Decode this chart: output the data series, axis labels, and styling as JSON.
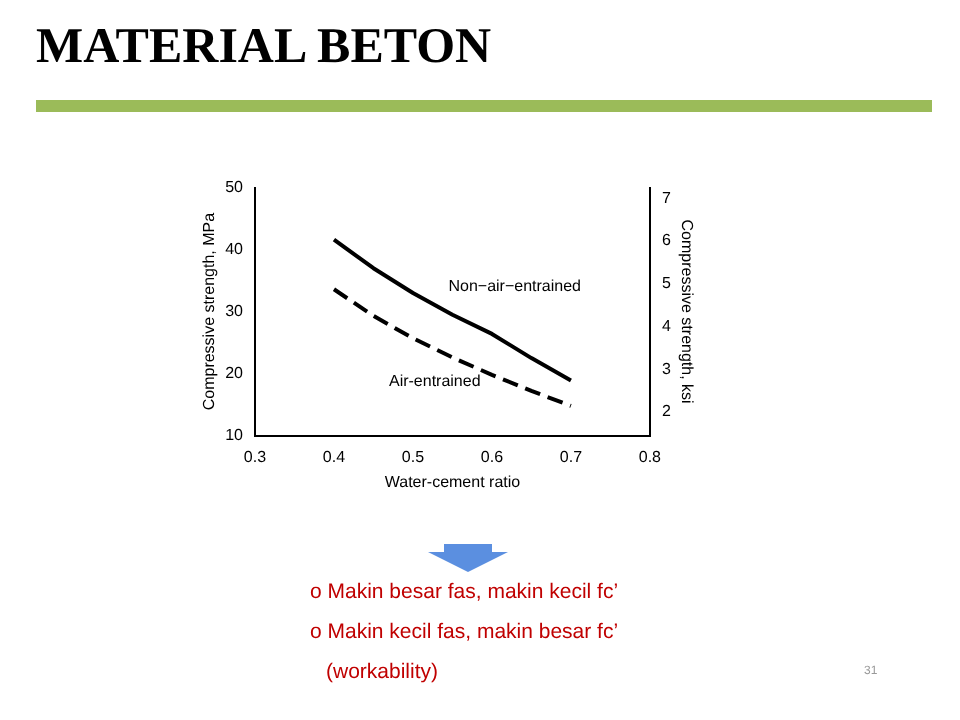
{
  "chart_data": {
    "type": "line",
    "title": "MATERIAL BETON",
    "xlabel": "Water-cement ratio",
    "ylabel": "Compressive strength, MPa",
    "y2label": "Compressive strength, ksi",
    "x": [
      0.4,
      0.45,
      0.5,
      0.55,
      0.6,
      0.65,
      0.7
    ],
    "series": [
      {
        "name": "Non−air−entrained",
        "color": "#000000",
        "line_style": "solid",
        "values": [
          41.6,
          37,
          33,
          29.5,
          26.4,
          22.5,
          18.9
        ]
      },
      {
        "name": "Air-entrained",
        "color": "#000000",
        "line_style": "dashed",
        "values": [
          33.6,
          29.3,
          25.7,
          22.6,
          19.8,
          17.2,
          14.8
        ]
      }
    ],
    "xlim": [
      0.3,
      0.8
    ],
    "xticks": [
      0.3,
      0.4,
      0.5,
      0.6,
      0.7,
      0.8
    ],
    "ylim": [
      10,
      50
    ],
    "yticks": [
      10,
      20,
      30,
      40,
      50
    ],
    "y2lim": [
      1.45,
      7.25
    ],
    "y2ticks": [
      2,
      3,
      4,
      5,
      6,
      7
    ],
    "grid": false,
    "legend": false,
    "marker": "none",
    "annotations": [
      "o Makin besar fas, makin kecil fc’",
      "o Makin kecil fas, makin besar fc’",
      "(workability)",
      "31"
    ]
  }
}
